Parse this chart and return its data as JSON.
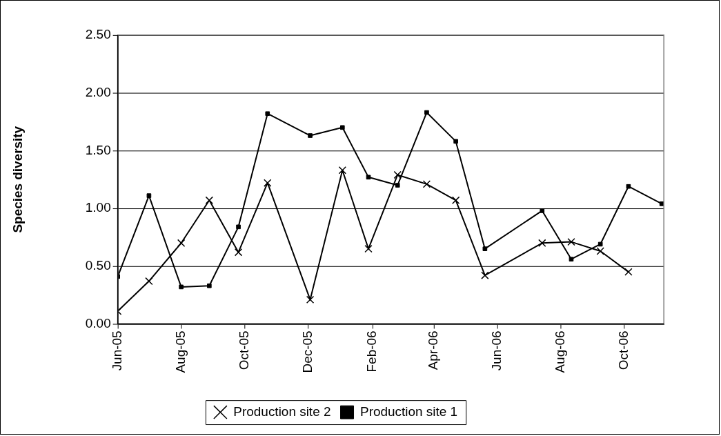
{
  "chart_data": {
    "type": "line",
    "ylabel": "Species diversity",
    "xlim": [
      "2005-06-01",
      "2006-11-08"
    ],
    "xticks": [
      {
        "value": "2005-06-01",
        "label": "Jun-05"
      },
      {
        "value": "2005-08-01",
        "label": "Aug-05"
      },
      {
        "value": "2005-10-01",
        "label": "Oct-05"
      },
      {
        "value": "2005-12-01",
        "label": "Dec-05"
      },
      {
        "value": "2006-02-01",
        "label": "Feb-06"
      },
      {
        "value": "2006-04-01",
        "label": "Apr-06"
      },
      {
        "value": "2006-06-01",
        "label": "Jun-06"
      },
      {
        "value": "2006-08-01",
        "label": "Aug-06"
      },
      {
        "value": "2006-10-01",
        "label": "Oct-06"
      }
    ],
    "ylim": [
      0,
      2.5
    ],
    "yticks": [
      {
        "value": 0,
        "label": "0.00"
      },
      {
        "value": 0.5,
        "label": "0.50"
      },
      {
        "value": 1,
        "label": "1.00"
      },
      {
        "value": 1.5,
        "label": "1.50"
      },
      {
        "value": 2,
        "label": "2.00"
      },
      {
        "value": 2.5,
        "label": "2.50"
      }
    ],
    "grid": "y",
    "legend": "bottom",
    "series": [
      {
        "name": "Production site 2",
        "color": "#000000",
        "marker": "cross",
        "x": [
          "2005-06-01",
          "2005-07-01",
          "2005-08-01",
          "2005-08-28",
          "2005-09-25",
          "2005-10-23",
          "2005-12-03",
          "2006-01-03",
          "2006-01-28",
          "2006-02-25",
          "2006-03-25",
          "2006-04-22",
          "2006-05-20",
          "2006-07-14",
          "2006-08-11",
          "2006-09-08",
          "2006-10-05"
        ],
        "values": [
          0.11,
          0.37,
          0.7,
          1.07,
          0.62,
          1.22,
          0.21,
          1.33,
          0.65,
          1.29,
          1.21,
          1.07,
          0.42,
          0.7,
          0.71,
          0.63,
          0.45
        ]
      },
      {
        "name": "Production site 1",
        "color": "#000000",
        "marker": "square",
        "x": [
          "2005-06-01",
          "2005-07-01",
          "2005-08-01",
          "2005-08-28",
          "2005-09-25",
          "2005-10-23",
          "2005-12-03",
          "2006-01-03",
          "2006-01-28",
          "2006-02-25",
          "2006-03-25",
          "2006-04-22",
          "2006-05-20",
          "2006-07-14",
          "2006-08-11",
          "2006-09-08",
          "2006-10-05",
          "2006-11-06"
        ],
        "values": [
          0.41,
          1.11,
          0.32,
          0.33,
          0.84,
          1.82,
          1.63,
          1.7,
          1.27,
          1.2,
          1.83,
          1.58,
          0.65,
          0.98,
          0.56,
          0.69,
          1.19,
          1.04
        ]
      }
    ]
  }
}
